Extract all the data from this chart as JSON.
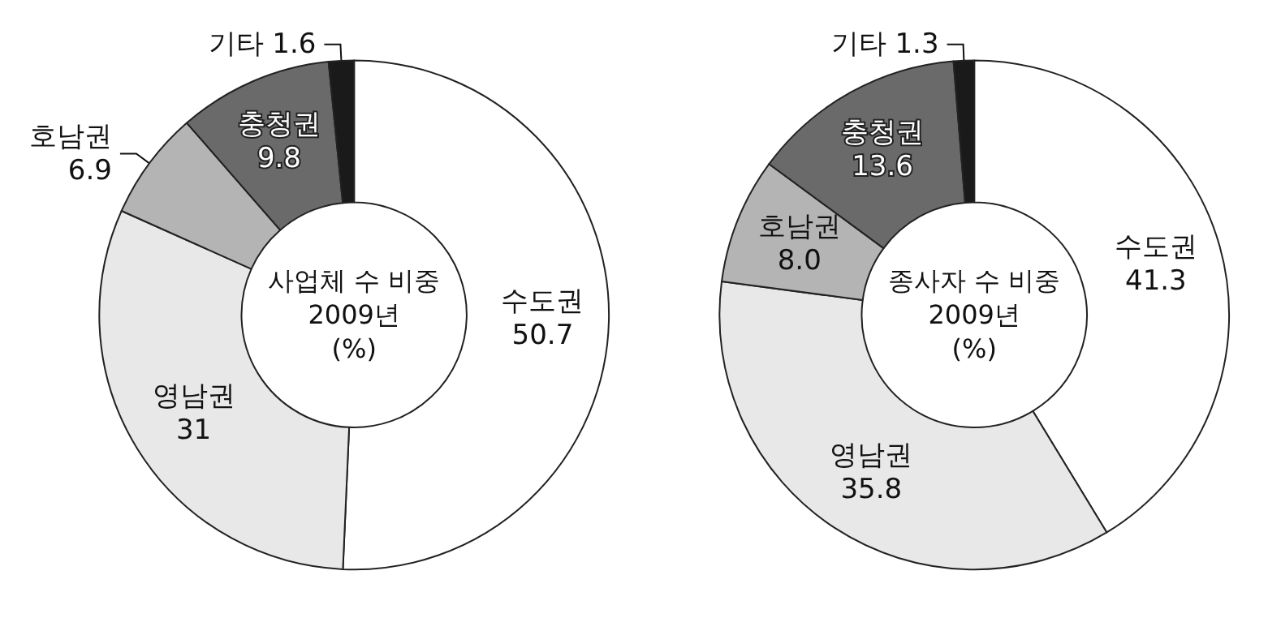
{
  "chart_data": [
    {
      "type": "donut",
      "title": "사업체 수 비중\n2009년\n(%)",
      "categories": [
        "수도권",
        "영남권",
        "호남권",
        "충청권",
        "기타"
      ],
      "values": [
        50.7,
        31,
        6.9,
        9.8,
        1.6
      ],
      "value_labels": [
        "50.7",
        "31",
        "6.9",
        "9.8",
        "1.6"
      ],
      "colors": [
        "#ffffff",
        "#e8e8e8",
        "#b4b4b4",
        "#6a6a6a",
        "#1a1a1a"
      ],
      "legend": false
    },
    {
      "type": "donut",
      "title": "종사자 수 비중\n2009년\n(%)",
      "categories": [
        "수도권",
        "영남권",
        "호남권",
        "충청권",
        "기타"
      ],
      "values": [
        41.3,
        35.8,
        8.0,
        13.6,
        1.3
      ],
      "value_labels": [
        "41.3",
        "35.8",
        "8.0",
        "13.6",
        "1.3"
      ],
      "colors": [
        "#ffffff",
        "#e8e8e8",
        "#b4b4b4",
        "#6a6a6a",
        "#1a1a1a"
      ],
      "legend": false
    }
  ]
}
